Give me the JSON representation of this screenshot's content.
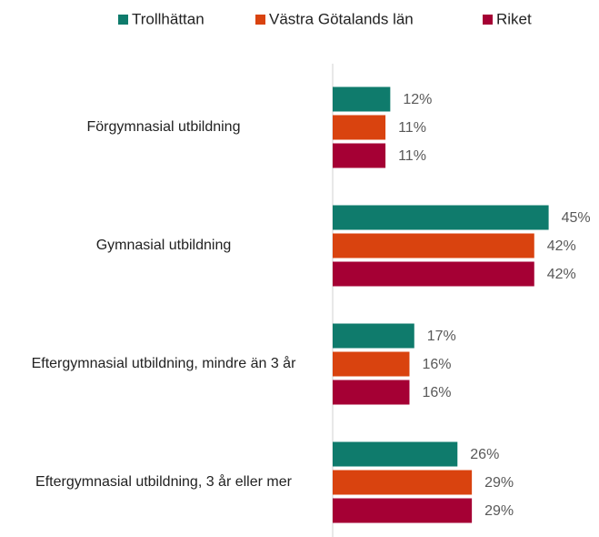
{
  "chart_data": {
    "type": "hbar",
    "categories": [
      "Förgymnasial utbildning",
      "Gymnasial utbildning",
      "Eftergymnasial utbildning, mindre än 3 år",
      "Eftergymnasial utbildning, 3 år eller mer"
    ],
    "series": [
      {
        "name": "Trollhättan",
        "color": "#0f7b6c",
        "values": [
          12,
          45,
          17,
          26
        ],
        "value_labels": [
          "12%",
          "45%",
          "17%",
          "26%"
        ]
      },
      {
        "name": "Västra Götalands län",
        "color": "#d9430f",
        "values": [
          11,
          42,
          16,
          29
        ],
        "value_labels": [
          "11%",
          "42%",
          "16%",
          "29%"
        ]
      },
      {
        "name": "Riket",
        "color": "#a50034",
        "values": [
          11,
          42,
          16,
          29
        ],
        "value_labels": [
          "11%",
          "42%",
          "16%",
          "29%"
        ]
      }
    ],
    "xlim": [
      0,
      50
    ],
    "legend": "top"
  }
}
